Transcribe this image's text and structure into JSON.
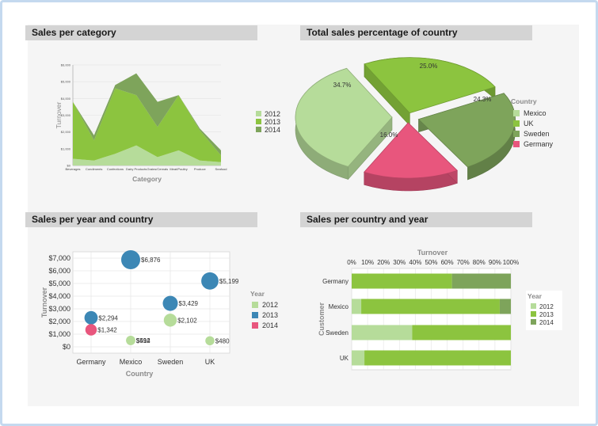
{
  "colors": {
    "c2012": "#b6dc9a",
    "c2013": "#8cc43f",
    "c2014": "#7ea45b",
    "mexico": "#b6dc9a",
    "uk": "#8cc43f",
    "sweden": "#7ea45b",
    "germany": "#e8567d",
    "bubble2013": "#3c87b5",
    "bubble2014": "#e8567d",
    "axisLabel": "#8a8a8a"
  },
  "panels": {
    "area": {
      "title": "Sales per category"
    },
    "pie": {
      "title": "Total sales percentage of country"
    },
    "bubble": {
      "title": "Sales per year and country"
    },
    "bar": {
      "title": "Sales per country and year"
    }
  },
  "chart_data": [
    {
      "type": "area",
      "title": "Sales per category",
      "xlabel": "Category",
      "ylabel": "Turnover",
      "ylim": [
        0,
        6000
      ],
      "yticks": [
        "$0",
        "$1,000",
        "$2,000",
        "$3,000",
        "$4,000",
        "$5,000",
        "$6,000"
      ],
      "categories": [
        "Beverages",
        "Condiments",
        "Confections",
        "Dairy Products",
        "Grains/Cereals",
        "Meat/Poultry",
        "Produce",
        "Seafood"
      ],
      "stacked": true,
      "series": [
        {
          "name": "2012",
          "values": [
            400,
            300,
            700,
            1200,
            500,
            900,
            300,
            200
          ]
        },
        {
          "name": "2013",
          "values": [
            3400,
            1200,
            3900,
            3000,
            1800,
            3300,
            1800,
            400
          ]
        },
        {
          "name": "2014",
          "values": [
            0,
            300,
            200,
            1300,
            1500,
            0,
            100,
            300
          ]
        }
      ],
      "legend": [
        "2012",
        "2013",
        "2014"
      ]
    },
    {
      "type": "pie",
      "title": "Total sales percentage of country",
      "legend_title": "Country",
      "slices": [
        {
          "name": "Mexico",
          "value": 34.7,
          "label": "34.7%"
        },
        {
          "name": "UK",
          "value": 25.0,
          "label": "25.0%"
        },
        {
          "name": "Sweden",
          "value": 24.3,
          "label": "24.3%"
        },
        {
          "name": "Germany",
          "value": 16.0,
          "label": "16.0%"
        }
      ]
    },
    {
      "type": "scatter",
      "title": "Sales per year and country",
      "xlabel": "Country",
      "ylabel": "Turnover",
      "ylim": [
        -500,
        7500
      ],
      "yticks": [
        "$0",
        "$1,000",
        "$2,000",
        "$3,000",
        "$4,000",
        "$5,000",
        "$6,000",
        "$7,000"
      ],
      "categories": [
        "Germany",
        "Mexico",
        "Sweden",
        "UK"
      ],
      "legend_title": "Year",
      "legend": [
        "2012",
        "2013",
        "2014"
      ],
      "points": [
        {
          "country": "Germany",
          "year": "2013",
          "value": 2294,
          "label": "$2,294"
        },
        {
          "country": "Germany",
          "year": "2014",
          "value": 1342,
          "label": "$1,342"
        },
        {
          "country": "Mexico",
          "year": "2013",
          "value": 6876,
          "label": "$6,876"
        },
        {
          "country": "Mexico",
          "year": "2012",
          "value": 514,
          "label": "$514"
        },
        {
          "country": "Mexico",
          "year": "2012",
          "value": 492,
          "label": "$492"
        },
        {
          "country": "Sweden",
          "year": "2013",
          "value": 3429,
          "label": "$3,429"
        },
        {
          "country": "Sweden",
          "year": "2012",
          "value": 2102,
          "label": "$2,102"
        },
        {
          "country": "UK",
          "year": "2013",
          "value": 5199,
          "label": "$5,199"
        },
        {
          "country": "UK",
          "year": "2012",
          "value": 480,
          "label": "$480"
        }
      ]
    },
    {
      "type": "bar",
      "title": "Sales per country and year",
      "orientation": "horizontal",
      "stacked": "percent",
      "xlabel": "Turnover",
      "ylabel": "Customer",
      "xticks": [
        "0%",
        "10%",
        "20%",
        "30%",
        "40%",
        "50%",
        "60%",
        "70%",
        "80%",
        "90%",
        "100%"
      ],
      "categories": [
        "Germany",
        "Mexico",
        "Sweden",
        "UK"
      ],
      "legend_title": "Year",
      "series": [
        {
          "name": "2012",
          "values": [
            0,
            6,
            38,
            8
          ]
        },
        {
          "name": "2013",
          "values": [
            63,
            87,
            62,
            92
          ]
        },
        {
          "name": "2014",
          "values": [
            37,
            7,
            0,
            0
          ]
        }
      ]
    }
  ]
}
